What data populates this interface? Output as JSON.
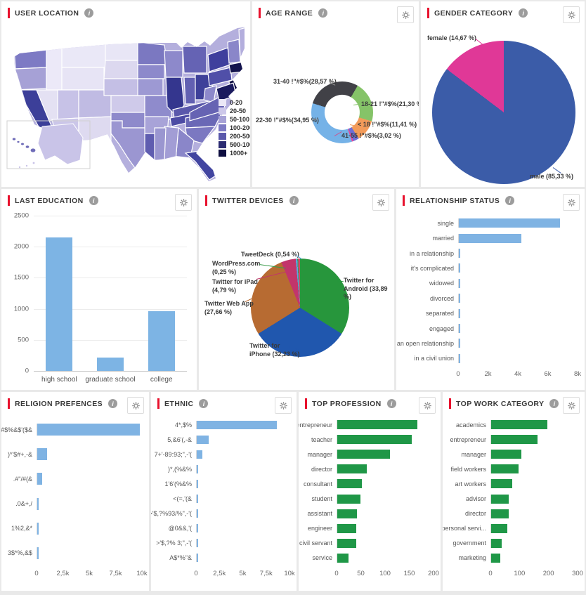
{
  "panels": {
    "user_location": {
      "title": "USER LOCATION"
    },
    "age_range": {
      "title": "AGE RANGE"
    },
    "gender": {
      "title": "GENDER CATEGORY"
    },
    "last_education": {
      "title": "LAST EDUCATION"
    },
    "twitter_devices": {
      "title": "TWITTER DEVICES"
    },
    "relationship": {
      "title": "RELATIONSHIP STATUS"
    },
    "religion": {
      "title": "RELIGION PREFENCES"
    },
    "ethnic": {
      "title": "ETHNIC"
    },
    "profession": {
      "title": "TOP PROFESSION"
    },
    "work_category": {
      "title": "TOP WORK CATEGORY"
    }
  },
  "icons": {
    "info_glyph": "i"
  },
  "chart_data": {
    "user_location": {
      "type": "choropleth",
      "title": "USER LOCATION",
      "region": "United States by state",
      "legend_bins": [
        {
          "label": "0-20",
          "color": "#ebe8f7"
        },
        {
          "label": "20-50",
          "color": "#cdc8ea"
        },
        {
          "label": "50-100",
          "color": "#a6a1d6"
        },
        {
          "label": "100-200",
          "color": "#7d7ac4"
        },
        {
          "label": "200-500",
          "color": "#5a58ab"
        },
        {
          "label": "500-1000",
          "color": "#2b2b72"
        },
        {
          "label": "1000+",
          "color": "#0e0e40"
        }
      ]
    },
    "age_range": {
      "type": "donut",
      "title": "AGE RANGE",
      "start_angle": 30,
      "slices": [
        {
          "label": "18-21 !\"#$%(21,30 %)",
          "value": 21.3,
          "color": "#85c368"
        },
        {
          "label": "< 18 !\"#$%(11,41 %)",
          "value": 11.41,
          "color": "#f39b5a"
        },
        {
          "label": "41-55 !\"#$%(3,02 %)",
          "value": 3.02,
          "color": "#6e6ed6"
        },
        {
          "label": "",
          "value": 0.77,
          "color": "#e8489d"
        },
        {
          "label": "22-30 !\"#$%(34,95 %)",
          "value": 34.95,
          "color": "#75b2e7"
        },
        {
          "label": "31-40 !\"#$%(28,57 %)",
          "value": 28.57,
          "color": "#414147"
        }
      ]
    },
    "gender": {
      "type": "pie",
      "title": "GENDER CATEGORY",
      "start_angle": 0,
      "slices": [
        {
          "label": "male (85,33 %)",
          "value": 85.33,
          "color": "#3b5ca8"
        },
        {
          "label": "female (14,67 %)",
          "value": 14.67,
          "color": "#e03897"
        }
      ]
    },
    "last_education": {
      "type": "bar",
      "title": "LAST EDUCATION",
      "categories": [
        "high school",
        "graduate school",
        "college"
      ],
      "values": [
        2150,
        215,
        960
      ],
      "ylim": [
        0,
        2500
      ],
      "yticks": [
        "0",
        "500",
        "1000",
        "1500",
        "2000",
        "2500"
      ],
      "color": "#7db4e4"
    },
    "twitter_devices": {
      "type": "pie",
      "title": "TWITTER DEVICES",
      "start_angle": 0,
      "slices": [
        {
          "label": "Twitter for\nAndroid (33,89\n%)",
          "value": 33.89,
          "color": "#27963c"
        },
        {
          "label": "Twitter for\niPhone (32,23 %)",
          "value": 32.23,
          "color": "#2057ae"
        },
        {
          "label": "Twitter Web App\n(27,66 %)",
          "value": 27.66,
          "color": "#b76b32"
        },
        {
          "label": "Twitter for iPad\n(4,79 %)",
          "value": 4.79,
          "color": "#c2356b"
        },
        {
          "label": "TweetDeck (0,54 %)",
          "value": 0.54,
          "color": "#56a8e0"
        },
        {
          "label": "WordPress.com\n(0,25 %)",
          "value": 0.25,
          "color": "#3a9b4a"
        },
        {
          "label": "",
          "value": 0.64,
          "color": "#d0486a"
        }
      ]
    },
    "relationship": {
      "type": "bar-h",
      "title": "RELATIONSHIP STATUS",
      "categories": [
        "single",
        "married",
        "in a relationship",
        "it's complicated",
        "widowed",
        "divorced",
        "separated",
        "engaged",
        "in an open relationship",
        "in a civil union"
      ],
      "values": [
        6800,
        4200,
        60,
        60,
        60,
        60,
        60,
        60,
        60,
        60
      ],
      "xlim": [
        0,
        8000
      ],
      "xticks": [
        "0",
        "2k",
        "4k",
        "6k",
        "8k"
      ],
      "color": "#7fb3e3"
    },
    "religion": {
      "type": "bar-h",
      "title": "RELIGION PREFENCES",
      "categories": [
        "!\"#$%&$'($&",
        ")*'$#+,-&",
        ".#\"/#(&",
        ".0&+,/",
        "1%2,&*",
        "3$*%,&$"
      ],
      "values": [
        9800,
        950,
        440,
        120,
        100,
        110
      ],
      "xlim": [
        0,
        10000
      ],
      "xticks": [
        "0",
        "2,5k",
        "5k",
        "7,5k",
        "10k"
      ],
      "color": "#7fb3e3"
    },
    "ethnic": {
      "type": "bar-h",
      "title": "ETHNIC",
      "categories": [
        "4*,$%",
        "5,&6'(,-&",
        "7+'-89:93;\",-'(",
        ")*,(%&%",
        "1'6'(%&%",
        "<(=,'(&",
        ">'$,?%93/%\",-'(",
        "@0&&,'(",
        ">'$,?% 3;\",-'(",
        "A$*%\"&"
      ],
      "values": [
        8600,
        1300,
        620,
        160,
        100,
        90,
        80,
        70,
        60,
        50
      ],
      "xlim": [
        0,
        10000
      ],
      "xticks": [
        "0",
        "2,5k",
        "5k",
        "7,5k",
        "10k"
      ],
      "color": "#7fb3e3"
    },
    "profession": {
      "type": "bar-h",
      "title": "TOP PROFESSION",
      "categories": [
        "entrepreneur",
        "teacher",
        "manager",
        "director",
        "consultant",
        "student",
        "assistant",
        "engineer",
        "civil servant",
        "service"
      ],
      "values": [
        166,
        155,
        110,
        61,
        51,
        48,
        41,
        40,
        39,
        24
      ],
      "xlim": [
        0,
        200
      ],
      "xticks": [
        "0",
        "50",
        "100",
        "150",
        "200"
      ],
      "color": "#1f9747"
    },
    "work_category": {
      "type": "bar-h",
      "title": "TOP WORK CATEGORY",
      "categories": [
        "academics",
        "entrepreneur",
        "manager",
        "field workers",
        "art workers",
        "advisor",
        "director",
        "personal servi...",
        "government",
        "marketing"
      ],
      "values": [
        195,
        162,
        106,
        94,
        72,
        60,
        60,
        56,
        36,
        32
      ],
      "xlim": [
        0,
        300
      ],
      "xticks": [
        "0",
        "100",
        "200",
        "300"
      ],
      "color": "#1f9747"
    }
  }
}
